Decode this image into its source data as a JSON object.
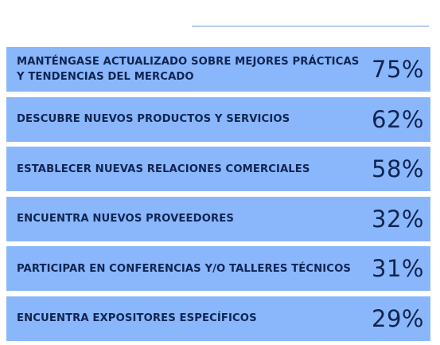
{
  "chart_data": {
    "type": "table",
    "unit": "%",
    "rows": [
      {
        "label": "MANTÉNGASE ACTUALIZADO SOBRE MEJORES PRÁCTICAS Y TENDENCIAS DEL MERCADO",
        "value": 75,
        "value_text": "75%"
      },
      {
        "label": "DESCUBRE NUEVOS PRODUCTOS Y SERVICIOS",
        "value": 62,
        "value_text": "62%"
      },
      {
        "label": "ESTABLECER NUEVAS RELACIONES COMERCIALES",
        "value": 58,
        "value_text": "58%"
      },
      {
        "label": "ENCUENTRA NUEVOS PROVEEDORES",
        "value": 32,
        "value_text": "32%"
      },
      {
        "label": "PARTICIPAR EN CONFERENCIAS Y/O TALLERES TÉCNICOS",
        "value": 31,
        "value_text": "31%"
      },
      {
        "label": "ENCUENTRA EXPOSITORES ESPECÍFICOS",
        "value": 29,
        "value_text": "29%"
      }
    ],
    "colors": {
      "row_background": "#8ab7fb",
      "text": "#102552",
      "divider": "#b7cdf0"
    }
  }
}
